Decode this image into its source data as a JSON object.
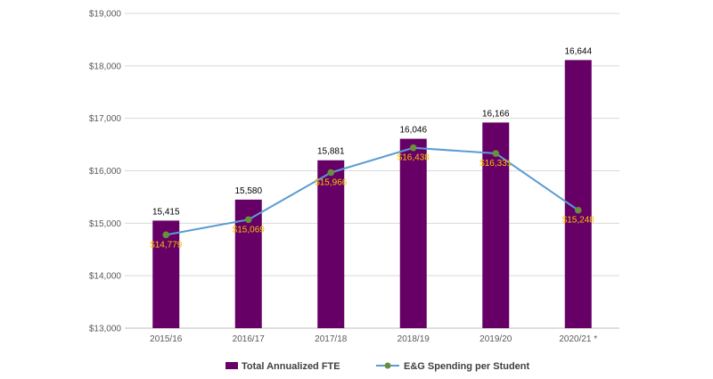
{
  "chart_data": {
    "type": "bar",
    "categories": [
      "2015/16",
      "2016/17",
      "2017/18",
      "2018/19",
      "2019/20",
      "2020/21 *"
    ],
    "y_axis": {
      "min": 13000,
      "max": 19000,
      "tick_labels": [
        "$13,000",
        "$14,000",
        "$15,000",
        "$16,000",
        "$17,000",
        "$18,000",
        "$19,000"
      ]
    },
    "grid": true,
    "legend_position": "bottom",
    "series": [
      {
        "name": "Total Annualized FTE",
        "kind": "bar",
        "color": "#660066",
        "values": [
          15415,
          15580,
          15881,
          16046,
          16166,
          16644
        ],
        "bar_heights_in_axis_units": [
          15050,
          15450,
          16200,
          16610,
          16920,
          18110
        ],
        "labels": [
          "15,415",
          "15,580",
          "15,881",
          "16,046",
          "16,166",
          "16,644"
        ]
      },
      {
        "name": "E&G Spending per Student",
        "kind": "line",
        "color": "#5b9bd5",
        "marker_color": "#6a8f3c",
        "values": [
          14779,
          15069,
          15966,
          16438,
          16331,
          15248
        ],
        "labels": [
          "$14,779",
          "$15,069",
          "$15,966",
          "$16,438",
          "$16,331",
          "$15,248"
        ]
      }
    ]
  }
}
